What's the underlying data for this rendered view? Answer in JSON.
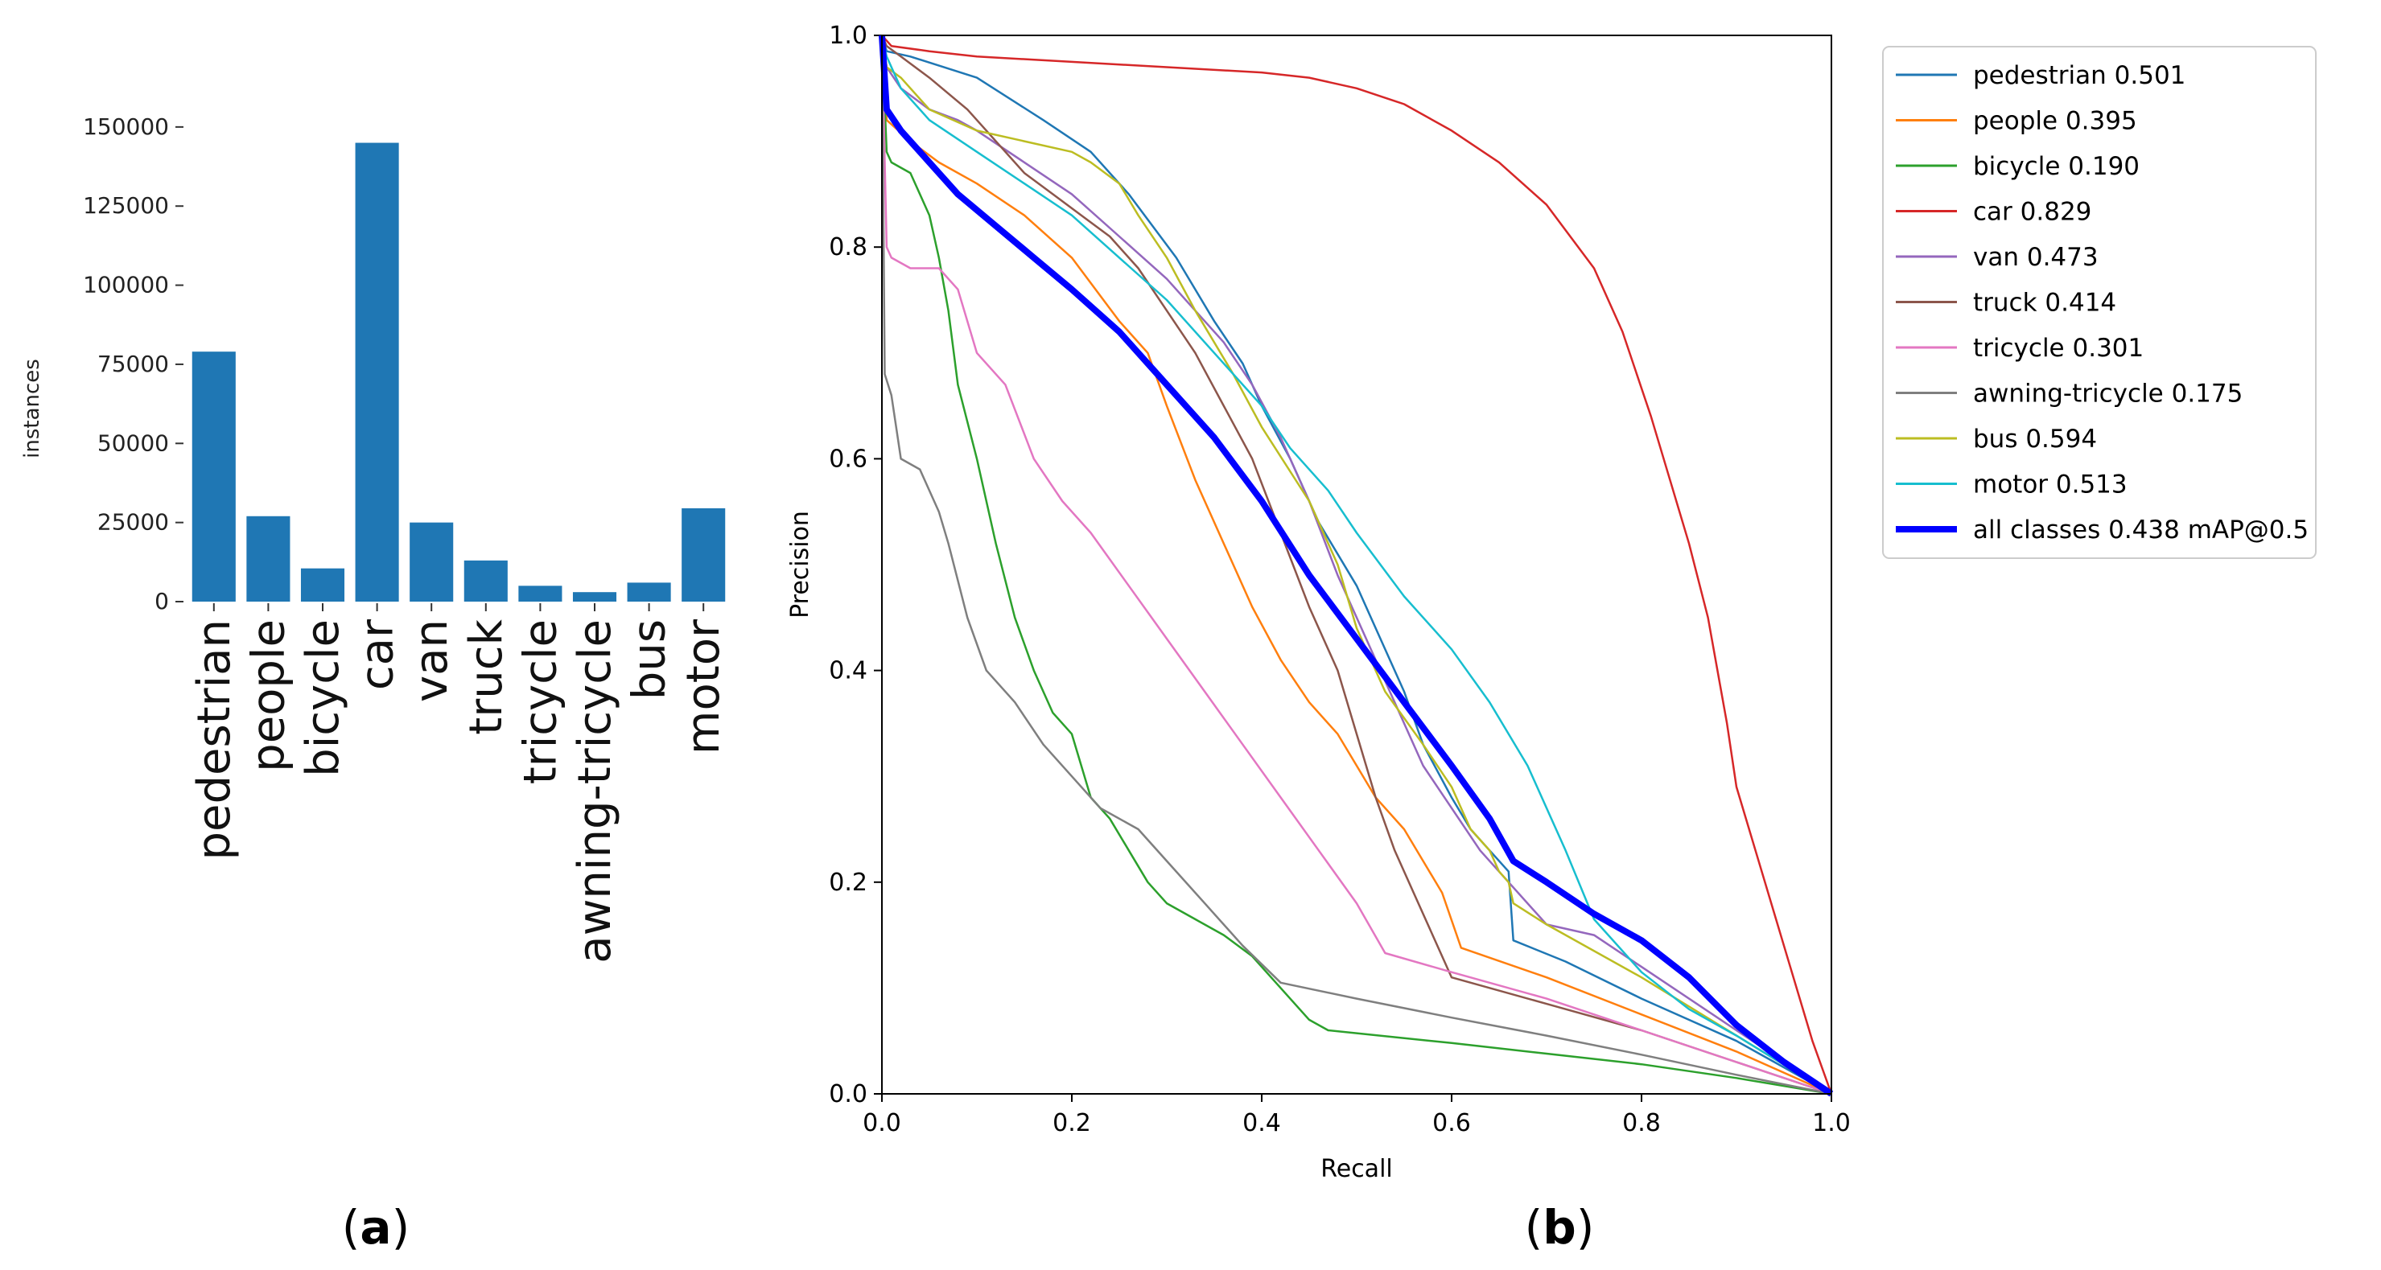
{
  "panels": {
    "a": {
      "label_open": "(",
      "label_letter": "a",
      "label_close": ")"
    },
    "b": {
      "label_open": "(",
      "label_letter": "b",
      "label_close": ")"
    }
  },
  "chart_data": [
    {
      "type": "bar",
      "ylabel": "instances",
      "xlabel": "",
      "ylim": [
        0,
        152000
      ],
      "yticks": [
        0,
        25000,
        50000,
        75000,
        100000,
        125000,
        150000
      ],
      "ytick_labels": [
        "0",
        "25000",
        "50000",
        "75000",
        "100000",
        "125000",
        "150000"
      ],
      "categories": [
        "pedestrian",
        "people",
        "bicycle",
        "car",
        "van",
        "truck",
        "tricycle",
        "awning-tricycle",
        "bus",
        "motor"
      ],
      "values": [
        79000,
        27000,
        10500,
        145000,
        25000,
        13000,
        5000,
        3000,
        6000,
        29500
      ],
      "color": "#1f77b4"
    },
    {
      "type": "line",
      "title": "",
      "xlabel": "Recall",
      "ylabel": "Precision",
      "xlim": [
        0,
        1
      ],
      "ylim": [
        0,
        1
      ],
      "ticks": [
        0,
        0.2,
        0.4,
        0.6,
        0.8,
        1.0
      ],
      "tick_labels": [
        "0.0",
        "0.2",
        "0.4",
        "0.6",
        "0.8",
        "1.0"
      ],
      "legend_position": "outside-right",
      "series": [
        {
          "name": "pedestrian 0.501",
          "color": "#1f77b4",
          "emphasis": false,
          "x": [
            0,
            0.005,
            0.03,
            0.1,
            0.17,
            0.22,
            0.26,
            0.31,
            0.35,
            0.38,
            0.4,
            0.43,
            0.46,
            0.5,
            0.53,
            0.55,
            0.57,
            0.6,
            0.62,
            0.64,
            0.66,
            0.665,
            0.72,
            0.8,
            0.9,
            1.0
          ],
          "y": [
            1.0,
            0.985,
            0.98,
            0.96,
            0.92,
            0.89,
            0.85,
            0.79,
            0.73,
            0.69,
            0.65,
            0.6,
            0.54,
            0.48,
            0.42,
            0.38,
            0.33,
            0.28,
            0.25,
            0.23,
            0.21,
            0.145,
            0.125,
            0.09,
            0.05,
            0
          ]
        },
        {
          "name": "people 0.395",
          "color": "#ff7f0e",
          "emphasis": false,
          "x": [
            0,
            0.005,
            0.03,
            0.06,
            0.1,
            0.15,
            0.2,
            0.25,
            0.28,
            0.3,
            0.33,
            0.36,
            0.39,
            0.42,
            0.45,
            0.48,
            0.5,
            0.52,
            0.55,
            0.57,
            0.59,
            0.61,
            0.7,
            0.8,
            0.9,
            1.0
          ],
          "y": [
            1.0,
            0.92,
            0.9,
            0.88,
            0.86,
            0.83,
            0.79,
            0.73,
            0.7,
            0.65,
            0.58,
            0.52,
            0.46,
            0.41,
            0.37,
            0.34,
            0.31,
            0.28,
            0.25,
            0.22,
            0.19,
            0.138,
            0.11,
            0.075,
            0.04,
            0
          ]
        },
        {
          "name": "bicycle 0.190",
          "color": "#2ca02c",
          "emphasis": false,
          "x": [
            0,
            0.005,
            0.01,
            0.03,
            0.05,
            0.06,
            0.07,
            0.08,
            0.1,
            0.12,
            0.14,
            0.16,
            0.18,
            0.2,
            0.22,
            0.24,
            0.26,
            0.28,
            0.3,
            0.33,
            0.36,
            0.39,
            0.42,
            0.45,
            0.47,
            0.6,
            0.7,
            0.8,
            0.9,
            1.0
          ],
          "y": [
            1.0,
            0.89,
            0.88,
            0.87,
            0.83,
            0.79,
            0.74,
            0.67,
            0.6,
            0.52,
            0.45,
            0.4,
            0.36,
            0.34,
            0.28,
            0.26,
            0.23,
            0.2,
            0.18,
            0.165,
            0.15,
            0.13,
            0.1,
            0.07,
            0.06,
            0.048,
            0.038,
            0.028,
            0.015,
            0
          ]
        },
        {
          "name": "car 0.829",
          "color": "#d62728",
          "emphasis": false,
          "x": [
            0,
            0.01,
            0.05,
            0.1,
            0.2,
            0.3,
            0.4,
            0.45,
            0.5,
            0.55,
            0.6,
            0.65,
            0.7,
            0.75,
            0.78,
            0.81,
            0.83,
            0.85,
            0.87,
            0.88,
            0.89,
            0.9,
            0.92,
            0.95,
            0.98,
            1.0
          ],
          "y": [
            1.0,
            0.99,
            0.985,
            0.98,
            0.975,
            0.97,
            0.965,
            0.96,
            0.95,
            0.935,
            0.91,
            0.88,
            0.84,
            0.78,
            0.72,
            0.64,
            0.58,
            0.52,
            0.45,
            0.4,
            0.35,
            0.29,
            0.23,
            0.14,
            0.05,
            0
          ]
        },
        {
          "name": "van 0.473",
          "color": "#9467bd",
          "emphasis": false,
          "x": [
            0,
            0.005,
            0.02,
            0.05,
            0.08,
            0.1,
            0.15,
            0.2,
            0.25,
            0.3,
            0.33,
            0.36,
            0.39,
            0.42,
            0.45,
            0.48,
            0.51,
            0.54,
            0.57,
            0.6,
            0.63,
            0.66,
            0.7,
            0.75,
            0.8,
            0.9,
            1.0
          ],
          "y": [
            1.0,
            0.97,
            0.95,
            0.93,
            0.92,
            0.91,
            0.88,
            0.85,
            0.81,
            0.77,
            0.74,
            0.71,
            0.67,
            0.62,
            0.56,
            0.49,
            0.43,
            0.37,
            0.31,
            0.27,
            0.23,
            0.2,
            0.16,
            0.15,
            0.12,
            0.06,
            0
          ]
        },
        {
          "name": "truck 0.414",
          "color": "#8c564b",
          "emphasis": false,
          "x": [
            0,
            0.005,
            0.02,
            0.05,
            0.09,
            0.12,
            0.15,
            0.18,
            0.21,
            0.24,
            0.27,
            0.3,
            0.33,
            0.36,
            0.39,
            0.42,
            0.45,
            0.48,
            0.5,
            0.52,
            0.54,
            0.56,
            0.58,
            0.6,
            0.7,
            0.8,
            0.9,
            1.0
          ],
          "y": [
            1.0,
            0.99,
            0.98,
            0.96,
            0.93,
            0.9,
            0.87,
            0.85,
            0.83,
            0.81,
            0.78,
            0.74,
            0.7,
            0.65,
            0.6,
            0.53,
            0.46,
            0.4,
            0.34,
            0.28,
            0.23,
            0.19,
            0.15,
            0.11,
            0.085,
            0.06,
            0.03,
            0
          ]
        },
        {
          "name": "tricycle 0.301",
          "color": "#e377c2",
          "emphasis": false,
          "x": [
            0,
            0.005,
            0.01,
            0.03,
            0.06,
            0.08,
            0.1,
            0.13,
            0.16,
            0.19,
            0.22,
            0.26,
            0.3,
            0.34,
            0.38,
            0.42,
            0.46,
            0.5,
            0.53,
            0.6,
            0.7,
            0.8,
            0.9,
            1.0
          ],
          "y": [
            1.0,
            0.8,
            0.79,
            0.78,
            0.78,
            0.76,
            0.7,
            0.67,
            0.6,
            0.56,
            0.53,
            0.48,
            0.43,
            0.38,
            0.33,
            0.28,
            0.23,
            0.18,
            0.133,
            0.115,
            0.09,
            0.06,
            0.03,
            0
          ]
        },
        {
          "name": "awning-tricycle 0.175",
          "color": "#7f7f7f",
          "emphasis": false,
          "x": [
            0,
            0.003,
            0.01,
            0.02,
            0.04,
            0.06,
            0.07,
            0.09,
            0.11,
            0.14,
            0.17,
            0.2,
            0.23,
            0.27,
            0.3,
            0.34,
            0.38,
            0.42,
            0.5,
            0.6,
            0.7,
            0.8,
            0.9,
            1.0
          ],
          "y": [
            1.0,
            0.68,
            0.66,
            0.6,
            0.59,
            0.55,
            0.52,
            0.45,
            0.4,
            0.37,
            0.33,
            0.3,
            0.27,
            0.25,
            0.22,
            0.18,
            0.14,
            0.105,
            0.09,
            0.072,
            0.055,
            0.037,
            0.018,
            0
          ]
        },
        {
          "name": "bus 0.594",
          "color": "#bcbd22",
          "emphasis": false,
          "x": [
            0,
            0.005,
            0.02,
            0.05,
            0.1,
            0.15,
            0.2,
            0.22,
            0.25,
            0.27,
            0.3,
            0.33,
            0.37,
            0.4,
            0.45,
            0.48,
            0.5,
            0.53,
            0.57,
            0.6,
            0.62,
            0.64,
            0.65,
            0.66,
            0.665,
            0.7,
            0.8,
            0.9,
            1.0
          ],
          "y": [
            1.0,
            0.97,
            0.96,
            0.93,
            0.91,
            0.9,
            0.89,
            0.88,
            0.86,
            0.83,
            0.79,
            0.74,
            0.68,
            0.63,
            0.56,
            0.5,
            0.44,
            0.38,
            0.33,
            0.29,
            0.25,
            0.23,
            0.21,
            0.2,
            0.18,
            0.16,
            0.11,
            0.055,
            0
          ]
        },
        {
          "name": "motor 0.513",
          "color": "#17becf",
          "emphasis": false,
          "x": [
            0,
            0.005,
            0.02,
            0.05,
            0.1,
            0.15,
            0.2,
            0.25,
            0.3,
            0.35,
            0.4,
            0.43,
            0.47,
            0.5,
            0.55,
            0.6,
            0.64,
            0.68,
            0.72,
            0.75,
            0.8,
            0.85,
            0.9,
            1.0
          ],
          "y": [
            1.0,
            0.98,
            0.95,
            0.92,
            0.89,
            0.86,
            0.83,
            0.79,
            0.75,
            0.7,
            0.65,
            0.61,
            0.57,
            0.53,
            0.47,
            0.42,
            0.37,
            0.31,
            0.23,
            0.165,
            0.115,
            0.08,
            0.055,
            0
          ]
        },
        {
          "name": "all classes 0.438 mAP@0.5",
          "color": "#0000ff",
          "emphasis": true,
          "x": [
            0,
            0.005,
            0.02,
            0.05,
            0.08,
            0.12,
            0.16,
            0.2,
            0.25,
            0.3,
            0.35,
            0.4,
            0.45,
            0.5,
            0.55,
            0.6,
            0.64,
            0.665,
            0.7,
            0.75,
            0.8,
            0.85,
            0.9,
            0.95,
            1.0
          ],
          "y": [
            1.0,
            0.93,
            0.91,
            0.88,
            0.85,
            0.82,
            0.79,
            0.76,
            0.72,
            0.67,
            0.62,
            0.56,
            0.49,
            0.43,
            0.37,
            0.31,
            0.26,
            0.22,
            0.2,
            0.17,
            0.145,
            0.11,
            0.065,
            0.03,
            0
          ]
        }
      ]
    }
  ]
}
